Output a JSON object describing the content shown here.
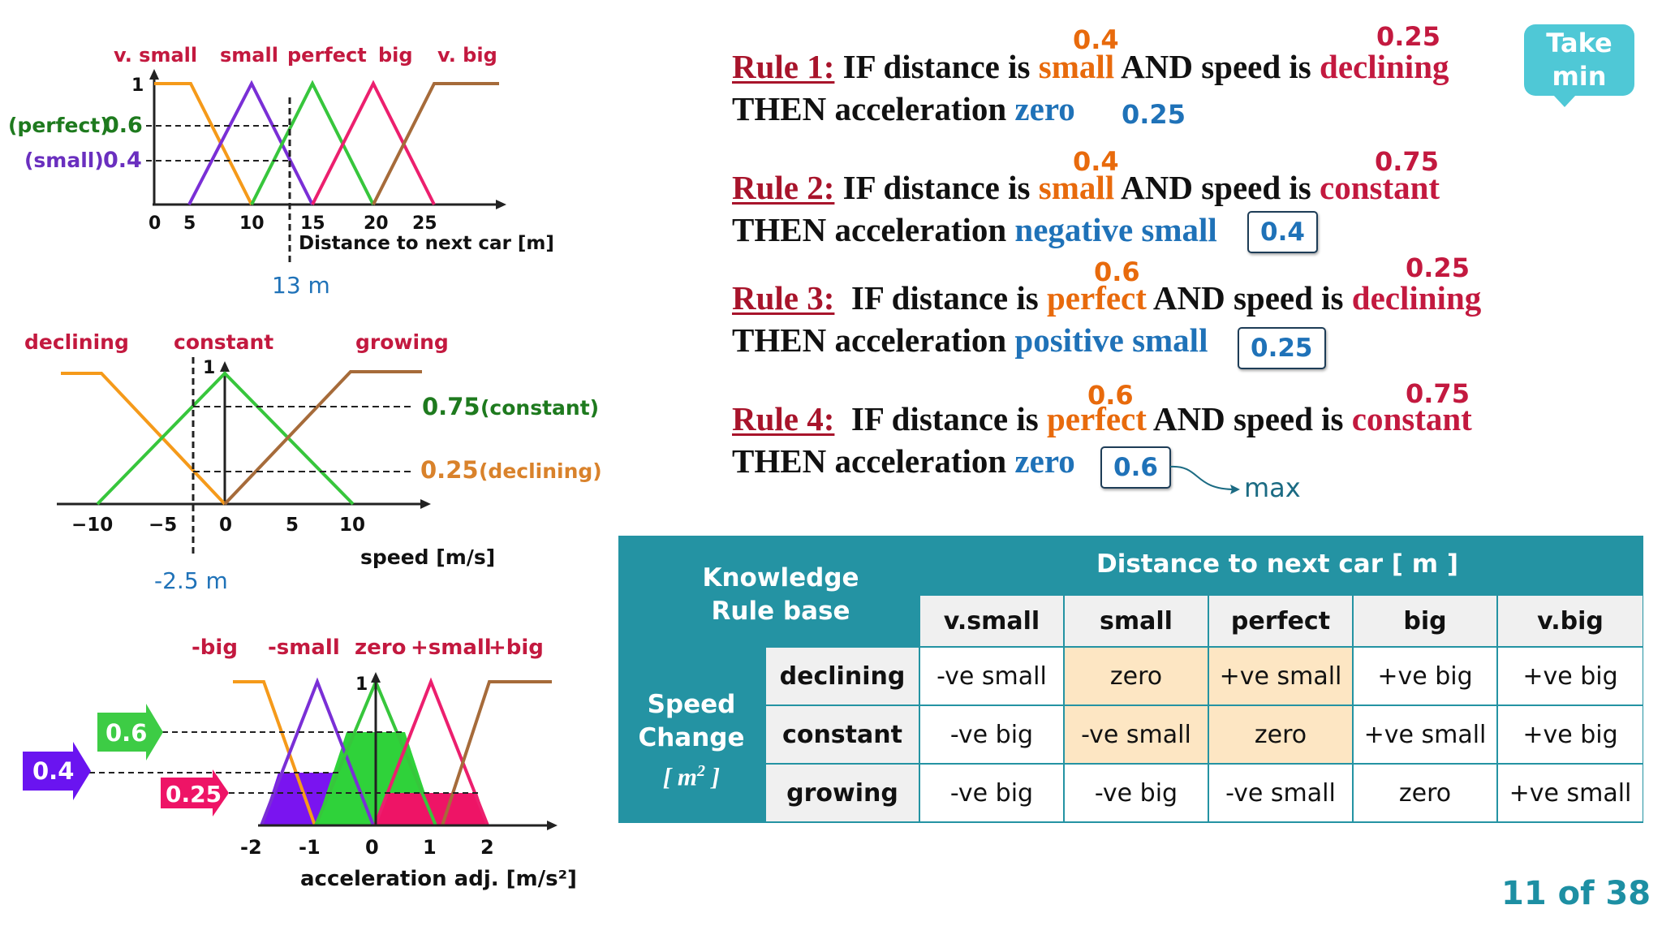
{
  "take_min": {
    "line1": "Take",
    "line2": "min"
  },
  "page_counter": "11 of 38",
  "distance_chart": {
    "labels": {
      "vsmall": "v. small",
      "small": "small",
      "perfect": "perfect",
      "big": "big",
      "vbig": "v. big"
    },
    "y_one": "1",
    "perfect_level_label": "(perfect)",
    "perfect_level_value": "0.6",
    "small_level_label": "(small)",
    "small_level_value": "0.4",
    "ticks": [
      "0",
      "5",
      "10",
      "15",
      "20",
      "25"
    ],
    "xlabel": "Distance to next car [m]",
    "marker": "13 m",
    "colors": {
      "vsmall": "#f59a1a",
      "small": "#7a2fd6",
      "perfect": "#37c63c",
      "big": "#ec1f6e",
      "vbig": "#a66b3a"
    }
  },
  "speed_chart": {
    "labels": {
      "declining": "declining",
      "constant": "constant",
      "growing": "growing"
    },
    "y_one": "1",
    "constant_level_value": "0.75",
    "constant_level_label": "(constant)",
    "declining_level_value": "0.25",
    "declining_level_label": "(declining)",
    "ticks": [
      "−10",
      "−5",
      "0",
      "5",
      "10"
    ],
    "xlabel": "speed [m/s]",
    "marker": "-2.5 m"
  },
  "accel_chart": {
    "labels": {
      "neg_big": "-big",
      "neg_small": "-small",
      "zero": "zero",
      "pos_small": "+small",
      "pos_big": "+big"
    },
    "y_one": "1",
    "arrows": {
      "a": "0.6",
      "b": "0.4",
      "c": "0.25"
    },
    "ticks": [
      "-2",
      "-1",
      "0",
      "1",
      "2"
    ],
    "xlabel": "acceleration adj.  [m/s²]"
  },
  "rules": [
    {
      "label": "Rule 1:",
      "t1": " IF distance is ",
      "dist": "small",
      "t2": " AND speed is ",
      "speed": "declining",
      "then": "THEN  acceleration ",
      "out": "zero",
      "dist_val": "0.4",
      "speed_val": "0.25",
      "out_val": "0.25"
    },
    {
      "label": "Rule 2:",
      "t1": " IF distance is ",
      "dist": "small",
      "t2": " AND speed is ",
      "speed": "constant",
      "then": "THEN acceleration ",
      "out": "negative small",
      "dist_val": "0.4",
      "speed_val": "0.75",
      "out_val": "0.4"
    },
    {
      "label": "Rule 3:",
      "t1": "  IF distance is ",
      "dist": "perfect",
      "t2": " AND speed is ",
      "speed": "declining",
      "then": "THEN acceleration ",
      "out": "positive small",
      "dist_val": "0.6",
      "speed_val": "0.25",
      "out_val": "0.25"
    },
    {
      "label": "Rule 4:",
      "t1": "  IF distance is ",
      "dist": "perfect",
      "t2": " AND speed is ",
      "speed": "constant",
      "then": "THEN acceleration ",
      "out": "zero",
      "dist_val": "0.6",
      "speed_val": "0.75",
      "out_val": "0.6"
    }
  ],
  "max_label": "max",
  "kb_table": {
    "corner_line1": "Knowledge",
    "corner_line2": "Rule base",
    "col_group": "Distance to next car  [ m ]",
    "columns": [
      "v.small",
      "small",
      "perfect",
      "big",
      "v.big"
    ],
    "row_group_line1": "Speed",
    "row_group_line2": "Change",
    "row_group_unit": "[ m",
    "row_group_sup": "2",
    "row_group_close": " ]",
    "rows": [
      {
        "label": "declining",
        "cells": [
          "-ve small",
          "zero",
          "+ve small",
          "+ve big",
          "+ve big"
        ]
      },
      {
        "label": "constant",
        "cells": [
          "-ve big",
          "-ve small",
          "zero",
          "+ve small",
          "+ve big"
        ]
      },
      {
        "label": "growing",
        "cells": [
          "-ve big",
          "-ve big",
          "-ve small",
          "zero",
          "+ve small"
        ]
      }
    ],
    "highlight_color": "#fde6c3"
  }
}
